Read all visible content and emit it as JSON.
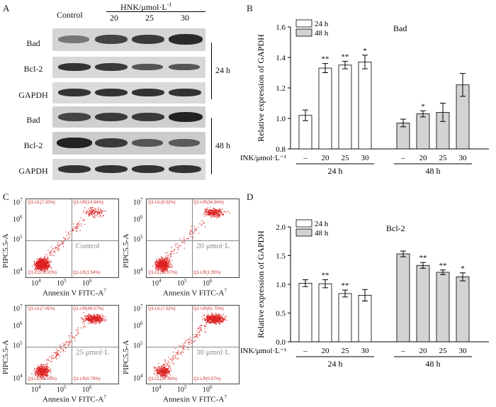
{
  "panels": {
    "a": "A",
    "b": "B",
    "c": "C",
    "d": "D"
  },
  "western": {
    "header_control": "Control",
    "header_hnk": "HNK/μmol·L",
    "header_hnk_exp": "-1",
    "doses": [
      "20",
      "25",
      "30"
    ],
    "rows": [
      "Bad",
      "Bcl-2",
      "GAPDH",
      "Bad",
      "Bcl-2",
      "GAPDH"
    ],
    "time_24": "24 h",
    "time_48": "48 h"
  },
  "flow": {
    "y_axis_label": "PIPC5.5-A",
    "x_axis_label": "Annexin V FITC-A",
    "tick_exp": [
      "10",
      "4",
      "5",
      "6",
      "7"
    ],
    "plots": [
      {
        "condition": "Control",
        "ul": "Q1-UL(7.20%)",
        "ur": "Q1-UR(14.94%)",
        "ll": "Q1-LL(76.32%)",
        "lr": "Q1-LR(1.54%)"
      },
      {
        "condition": "20 μmol·L",
        "ul": "Q1-UL(9.32%)",
        "ur": "Q1-UR(34.56%)",
        "ll": "Q1-LL(55.07%)",
        "lr": "Q1-LR(1.05%)"
      },
      {
        "condition": "25 μmol·L",
        "ul": "Q1-UL(7.05%)",
        "ur": "Q1-UR(49.07%)",
        "ll": "Q1-LL(43.09%)",
        "lr": "Q1-LR(0.79%)"
      },
      {
        "condition": "30 μmol·L",
        "ul": "Q1-UL(7.32%)",
        "ur": "Q1-UR(61.75%)",
        "ll": "Q1-LL(30.36%)",
        "lr": "Q1-LR(0.57%)"
      }
    ]
  },
  "chart_data": [
    {
      "type": "bar",
      "title": "Bad",
      "ylabel": "Relative expression of GAPDH",
      "xlabel": "HNK/μmol·L",
      "ylim": [
        0.8,
        1.6
      ],
      "yticks": [
        "0.8",
        "1.0",
        "1.2",
        "1.4",
        "1.6"
      ],
      "categories": [
        "–",
        "20",
        "25",
        "30"
      ],
      "group_labels": [
        "24 h",
        "48 h"
      ],
      "series": [
        {
          "name": "24 h",
          "color": "#ffffff",
          "values": [
            1.02,
            1.33,
            1.35,
            1.37
          ],
          "errors": [
            0.035,
            0.03,
            0.025,
            0.045
          ],
          "sig": [
            "",
            "**",
            "**",
            "*"
          ]
        },
        {
          "name": "48 h",
          "color": "#d3d3d3",
          "values": [
            0.97,
            1.03,
            1.04,
            1.22
          ],
          "errors": [
            0.025,
            0.02,
            0.06,
            0.075
          ],
          "sig": [
            "",
            "*",
            "",
            ""
          ]
        }
      ]
    },
    {
      "type": "bar",
      "title": "Bcl-2",
      "ylabel": "Relative expression of GAPDH",
      "xlabel": "HNK/μmol·L",
      "ylim": [
        0.0,
        2.0
      ],
      "yticks": [
        "0.0",
        "0.5",
        "1.0",
        "1.5",
        "2.0"
      ],
      "categories": [
        "–",
        "20",
        "25",
        "30"
      ],
      "group_labels": [
        "24 h",
        "48 h"
      ],
      "series": [
        {
          "name": "24 h",
          "color": "#ffffff",
          "values": [
            1.02,
            1.01,
            0.84,
            0.81
          ],
          "errors": [
            0.06,
            0.07,
            0.06,
            0.1
          ],
          "sig": [
            "",
            "**",
            "**",
            ""
          ]
        },
        {
          "name": "48 h",
          "color": "#d3d3d3",
          "values": [
            1.53,
            1.33,
            1.21,
            1.13
          ],
          "errors": [
            0.05,
            0.05,
            0.04,
            0.07
          ],
          "sig": [
            "",
            "**",
            "**",
            "*"
          ]
        }
      ]
    }
  ]
}
